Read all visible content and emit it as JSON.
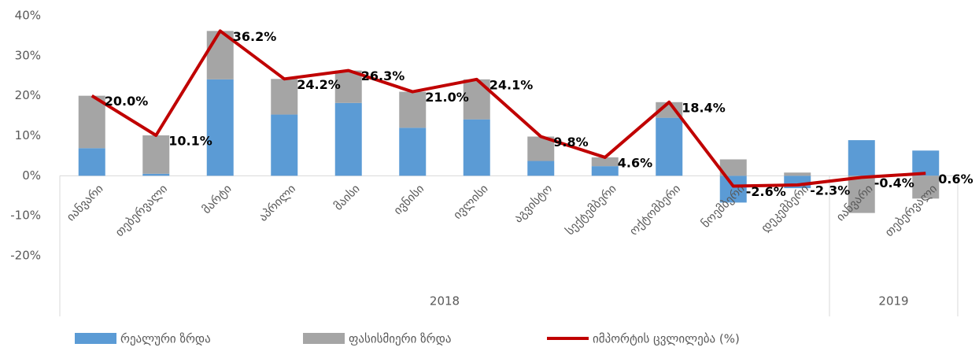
{
  "chart_data": {
    "type": "bar-line",
    "categories": [
      "იანვარი",
      "თებერვალი",
      "მარტი",
      "აპრილი",
      "მაისი",
      "ივნისი",
      "ივლისი",
      "აგვისტო",
      "სექტემბერი",
      "ოქტომბერი",
      "ნოემბერი",
      "დეკემბერი",
      "იანვარი",
      "თებერვალი"
    ],
    "x_groups": [
      {
        "label": "2018",
        "span": 12
      },
      {
        "label": "2019",
        "span": 2
      }
    ],
    "series": [
      {
        "name": "რეალური ზრდა",
        "type": "bar",
        "color": "#5b9bd5",
        "values": [
          6.9,
          0.5,
          24.1,
          15.3,
          18.2,
          12.0,
          14.1,
          3.7,
          2.4,
          14.5,
          -6.7,
          -3.1,
          8.9,
          6.3
        ]
      },
      {
        "name": "ფასისმიერი ზრდა",
        "type": "bar",
        "color": "#a5a5a5",
        "values": [
          13.1,
          9.6,
          12.1,
          8.9,
          8.1,
          9.0,
          10.0,
          6.1,
          2.2,
          3.9,
          4.1,
          0.8,
          -9.3,
          -5.7
        ]
      },
      {
        "name": "იმპორტის ცვლილება (%)",
        "type": "line",
        "color": "#c00000",
        "values": [
          20.0,
          10.1,
          36.2,
          24.2,
          26.3,
          21.0,
          24.1,
          9.8,
          4.6,
          18.4,
          -2.6,
          -2.3,
          -0.4,
          0.6
        ],
        "value_labels": [
          "20.0%",
          "10.1%",
          "36.2%",
          "24.2%",
          "26.3%",
          "21.0%",
          "24.1%",
          "9.8%",
          "4.6%",
          "18.4%",
          "-2.6%",
          "-2.3%",
          "-0.4%",
          "0.6%"
        ]
      }
    ],
    "ylim": [
      -20,
      40
    ],
    "yticks": [
      {
        "value": -20,
        "label": "-20%"
      },
      {
        "value": -10,
        "label": "-10%"
      },
      {
        "value": 0,
        "label": "0%"
      },
      {
        "value": 10,
        "label": "10%"
      },
      {
        "value": 20,
        "label": "20%"
      },
      {
        "value": 30,
        "label": "30%"
      },
      {
        "value": 40,
        "label": "40%"
      }
    ],
    "legend": "bottom"
  }
}
